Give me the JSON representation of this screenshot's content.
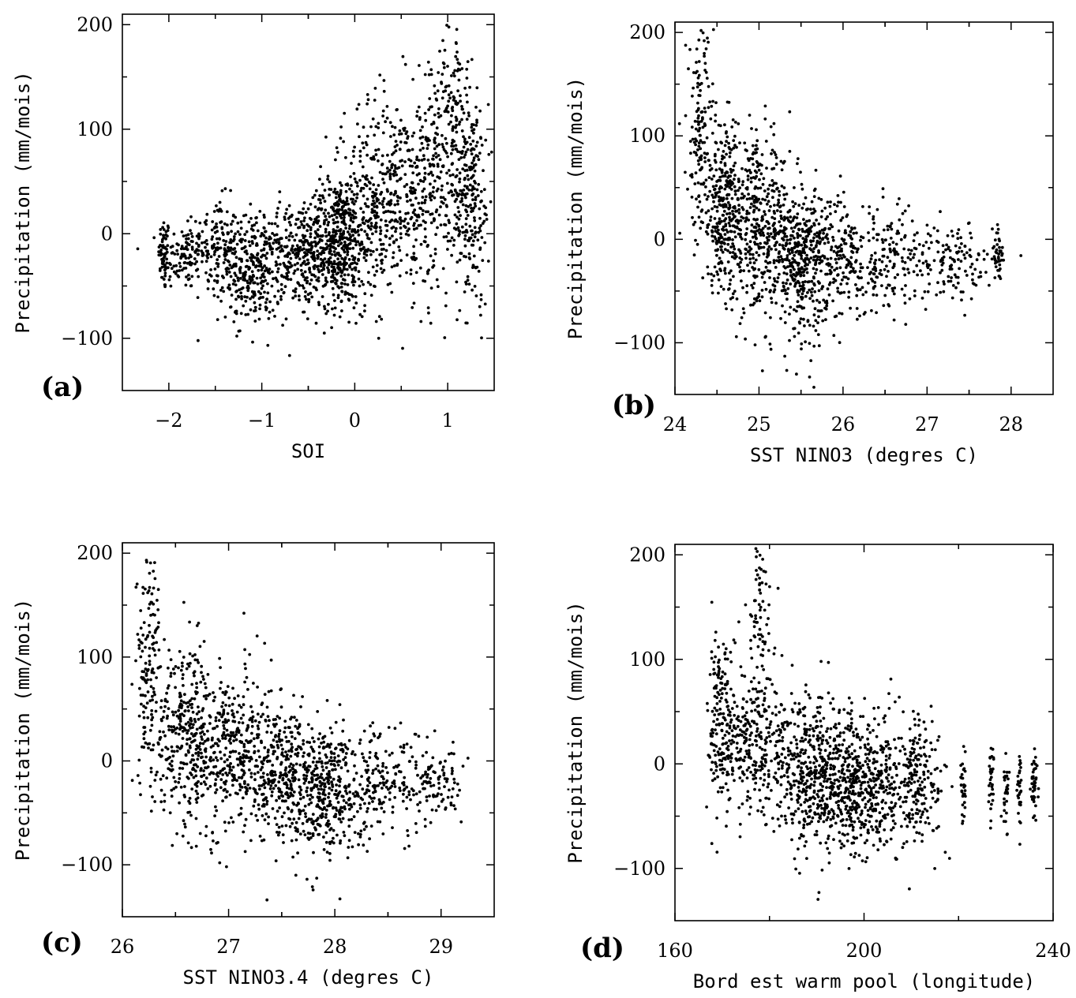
{
  "chart_data": [
    {
      "type": "scatter",
      "panel_label": "(a)",
      "xlabel": "SOI",
      "ylabel": "Precipitation (mm/mois)",
      "xlim": [
        -2.5,
        1.5
      ],
      "ylim": [
        -150,
        210
      ],
      "xticks": [
        -2,
        -1,
        0,
        1
      ],
      "yticks": [
        -100,
        0,
        100,
        200
      ],
      "xtick_labels": [
        "−2",
        "−1",
        "0",
        "1"
      ],
      "ytick_labels": [
        "−100",
        "0",
        "100",
        "200"
      ],
      "trend": "positive",
      "clusters": [
        {
          "x": -2.05,
          "y": -20,
          "sx": 0.03,
          "sy": 18,
          "n": 60
        },
        {
          "x": -1.85,
          "y": -22,
          "sx": 0.12,
          "sy": 16,
          "n": 90
        },
        {
          "x": -1.5,
          "y": -10,
          "sx": 0.12,
          "sy": 22,
          "n": 140
        },
        {
          "x": -1.1,
          "y": -35,
          "sx": 0.18,
          "sy": 25,
          "n": 320
        },
        {
          "x": -0.6,
          "y": -20,
          "sx": 0.2,
          "sy": 25,
          "n": 260
        },
        {
          "x": -0.2,
          "y": -10,
          "sx": 0.15,
          "sy": 30,
          "n": 380
        },
        {
          "x": 0.1,
          "y": 20,
          "sx": 0.2,
          "sy": 45,
          "n": 300
        },
        {
          "x": 0.5,
          "y": 40,
          "sx": 0.2,
          "sy": 45,
          "n": 260
        },
        {
          "x": 0.95,
          "y": 60,
          "sx": 0.2,
          "sy": 55,
          "n": 280
        },
        {
          "x": 1.25,
          "y": 30,
          "sx": 0.1,
          "sy": 50,
          "n": 200
        },
        {
          "x": 1.05,
          "y": 150,
          "sx": 0.08,
          "sy": 30,
          "n": 60
        }
      ]
    },
    {
      "type": "scatter",
      "panel_label": "(b)",
      "xlabel": "SST NINO3 (degres C)",
      "ylabel": "Precipitation (mm/mois)",
      "xlim": [
        24,
        28.5
      ],
      "ylim": [
        -150,
        210
      ],
      "xticks": [
        24,
        25,
        26,
        27,
        28
      ],
      "yticks": [
        -100,
        0,
        100,
        200
      ],
      "xtick_labels": [
        "24",
        "25",
        "26",
        "27",
        "28"
      ],
      "ytick_labels": [
        "−100",
        "0",
        "100",
        "200"
      ],
      "trend": "negative",
      "clusters": [
        {
          "x": 24.3,
          "y": 100,
          "sx": 0.08,
          "sy": 55,
          "n": 140
        },
        {
          "x": 24.6,
          "y": 30,
          "sx": 0.15,
          "sy": 40,
          "n": 320
        },
        {
          "x": 25.0,
          "y": 10,
          "sx": 0.2,
          "sy": 40,
          "n": 380
        },
        {
          "x": 25.5,
          "y": -20,
          "sx": 0.15,
          "sy": 35,
          "n": 380
        },
        {
          "x": 26.0,
          "y": -20,
          "sx": 0.2,
          "sy": 30,
          "n": 220
        },
        {
          "x": 26.6,
          "y": -20,
          "sx": 0.2,
          "sy": 25,
          "n": 140
        },
        {
          "x": 27.3,
          "y": -22,
          "sx": 0.25,
          "sy": 18,
          "n": 130
        },
        {
          "x": 27.85,
          "y": -20,
          "sx": 0.03,
          "sy": 18,
          "n": 40
        }
      ]
    },
    {
      "type": "scatter",
      "panel_label": "(c)",
      "xlabel": "SST NINO3.4 (degres C)",
      "ylabel": "Precipitation (mm/mois)",
      "xlim": [
        26,
        29.5
      ],
      "ylim": [
        -150,
        210
      ],
      "xticks": [
        26,
        27,
        28,
        29
      ],
      "yticks": [
        -100,
        0,
        100,
        200
      ],
      "xtick_labels": [
        "26",
        "27",
        "28",
        "29"
      ],
      "ytick_labels": [
        "−100",
        "0",
        "100",
        "200"
      ],
      "trend": "negative",
      "clusters": [
        {
          "x": 26.25,
          "y": 90,
          "sx": 0.06,
          "sy": 55,
          "n": 140
        },
        {
          "x": 26.6,
          "y": 30,
          "sx": 0.15,
          "sy": 40,
          "n": 300
        },
        {
          "x": 27.0,
          "y": 10,
          "sx": 0.2,
          "sy": 40,
          "n": 340
        },
        {
          "x": 27.5,
          "y": -10,
          "sx": 0.2,
          "sy": 35,
          "n": 380
        },
        {
          "x": 27.9,
          "y": -30,
          "sx": 0.15,
          "sy": 30,
          "n": 300
        },
        {
          "x": 28.4,
          "y": -20,
          "sx": 0.25,
          "sy": 28,
          "n": 200
        },
        {
          "x": 28.9,
          "y": -25,
          "sx": 0.15,
          "sy": 18,
          "n": 110
        }
      ]
    },
    {
      "type": "scatter",
      "panel_label": "(d)",
      "xlabel": "Bord est warm pool (longitude)",
      "ylabel": "Precipitation (mm/mois)",
      "xlim": [
        160,
        240
      ],
      "ylim": [
        -150,
        210
      ],
      "xticks": [
        160,
        200,
        240
      ],
      "yticks": [
        -100,
        0,
        100,
        200
      ],
      "xtick_labels": [
        "160",
        "200",
        "240"
      ],
      "ytick_labels": [
        "−100",
        "0",
        "100",
        "200"
      ],
      "trend": "negative",
      "clusters": [
        {
          "x": 170,
          "y": 40,
          "sx": 1.5,
          "sy": 45,
          "n": 180
        },
        {
          "x": 176,
          "y": 20,
          "sx": 2.5,
          "sy": 35,
          "n": 200
        },
        {
          "x": 178,
          "y": 140,
          "sx": 1.2,
          "sy": 40,
          "n": 70
        },
        {
          "x": 186,
          "y": 0,
          "sx": 4,
          "sy": 35,
          "n": 320
        },
        {
          "x": 194,
          "y": -15,
          "sx": 4,
          "sy": 35,
          "n": 380
        },
        {
          "x": 202,
          "y": -20,
          "sx": 4,
          "sy": 32,
          "n": 340
        },
        {
          "x": 212,
          "y": -15,
          "sx": 2.5,
          "sy": 30,
          "n": 180
        },
        {
          "x": 221,
          "y": -20,
          "sx": 0.3,
          "sy": 20,
          "n": 30
        },
        {
          "x": 227,
          "y": -20,
          "sx": 0.3,
          "sy": 18,
          "n": 30
        },
        {
          "x": 230,
          "y": -22,
          "sx": 0.3,
          "sy": 18,
          "n": 30
        },
        {
          "x": 233,
          "y": -25,
          "sx": 0.3,
          "sy": 18,
          "n": 30
        },
        {
          "x": 236,
          "y": -25,
          "sx": 0.3,
          "sy": 18,
          "n": 40
        }
      ]
    }
  ]
}
